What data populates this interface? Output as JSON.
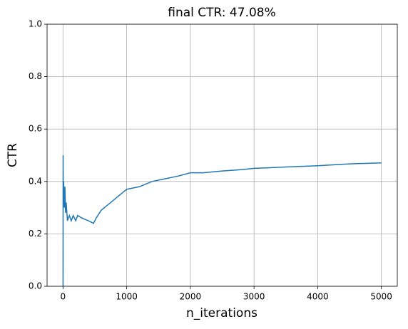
{
  "chart_data": {
    "type": "line",
    "title": "final CTR: 47.08%",
    "x_label": "n_iterations",
    "y_label": "CTR",
    "x": [
      1,
      2,
      5,
      10,
      20,
      30,
      40,
      50,
      70,
      100,
      130,
      160,
      200,
      230,
      300,
      400,
      480,
      520,
      600,
      700,
      800,
      900,
      1000,
      1200,
      1400,
      1600,
      1800,
      2000,
      2200,
      2500,
      2800,
      3000,
      3500,
      4000,
      4500,
      5000
    ],
    "series": [
      {
        "name": "CTR",
        "color": "#1f77b4",
        "values": [
          0,
          0.5,
          0.33,
          0.4,
          0.3,
          0.38,
          0.28,
          0.32,
          0.25,
          0.27,
          0.25,
          0.27,
          0.25,
          0.27,
          0.26,
          0.25,
          0.24,
          0.26,
          0.29,
          0.31,
          0.33,
          0.35,
          0.37,
          0.38,
          0.4,
          0.41,
          0.42,
          0.433,
          0.433,
          0.44,
          0.445,
          0.45,
          0.455,
          0.46,
          0.467,
          0.4708
        ]
      }
    ],
    "xlim": [
      -250,
      5250
    ],
    "xticks": [
      0,
      1000,
      2000,
      3000,
      4000,
      5000
    ],
    "ylim": [
      0,
      1
    ],
    "yticks": [
      {
        "value": 0,
        "label": "0.0"
      },
      0.2,
      0.4,
      0.6,
      0.8,
      {
        "value": 1,
        "label": "1.0"
      }
    ],
    "grid": true
  }
}
